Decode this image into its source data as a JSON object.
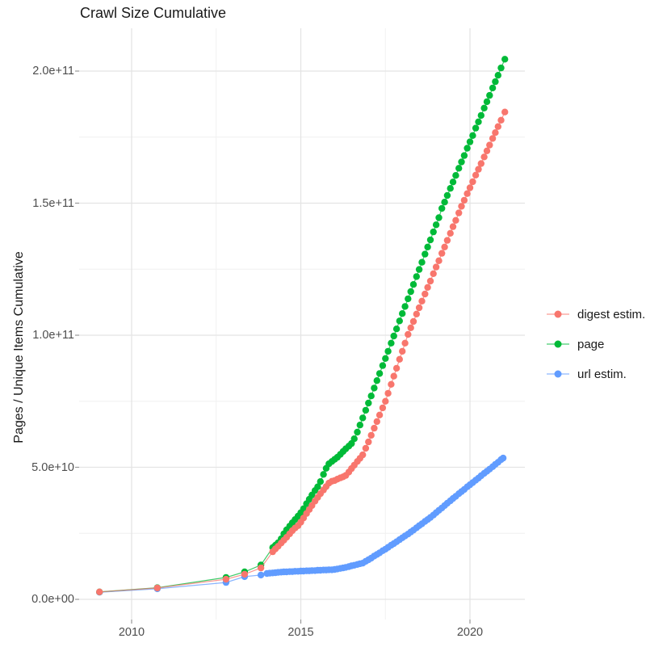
{
  "title": "Crawl Size Cumulative",
  "y_axis": {
    "label": "Pages / Unique Items Cumulative",
    "tick_labels": [
      "0.0e+00",
      "5.0e+10",
      "1.0e+11",
      "1.5e+11",
      "2.0e+11"
    ],
    "tick_values_e9": [
      0,
      50,
      100,
      150,
      200
    ],
    "minor_values_e9": [
      25,
      75,
      125,
      175
    ]
  },
  "x_axis": {
    "tick_labels": [
      "2010",
      "2015",
      "2020"
    ],
    "tick_values": [
      2010,
      2015,
      2020
    ],
    "minor_values": [
      2012.5,
      2017.5
    ]
  },
  "legend": {
    "position": "right",
    "items": [
      "digest estim.",
      "page",
      "url estim."
    ]
  },
  "chart_data": {
    "type": "scatter",
    "title": "Crawl Size Cumulative",
    "xlabel": "",
    "ylabel": "Pages / Unique Items Cumulative",
    "value_unit": "items, stored as billions (1e9)",
    "x_range": [
      2009.05,
      2021.03
    ],
    "y_range_e9": [
      0,
      205
    ],
    "grid": true,
    "legend_position": "right",
    "draw_order": [
      "url estim.",
      "page",
      "digest estim."
    ],
    "series": [
      {
        "name": "digest estim.",
        "color": "#F8766D",
        "points": [
          [
            2009.05,
            2.8
          ],
          [
            2010.76,
            4.3
          ],
          [
            2012.79,
            7.6
          ],
          [
            2013.34,
            9.5
          ],
          [
            2013.82,
            11.9
          ],
          [
            2014.17,
            18.0
          ],
          [
            2014.25,
            19.1
          ],
          [
            2014.33,
            20.1
          ],
          [
            2014.42,
            21.3
          ],
          [
            2014.5,
            22.4
          ],
          [
            2014.58,
            23.5
          ],
          [
            2014.67,
            24.8
          ],
          [
            2014.75,
            26.0
          ],
          [
            2014.83,
            27.0
          ],
          [
            2014.92,
            27.9
          ],
          [
            2015.0,
            29.2
          ],
          [
            2015.08,
            30.8
          ],
          [
            2015.17,
            32.5
          ],
          [
            2015.25,
            34.0
          ],
          [
            2015.33,
            35.5
          ],
          [
            2015.42,
            37.2
          ],
          [
            2015.5,
            38.6
          ],
          [
            2015.58,
            40.0
          ],
          [
            2015.67,
            41.4
          ],
          [
            2015.75,
            42.7
          ],
          [
            2015.83,
            44.0
          ],
          [
            2015.92,
            44.7
          ],
          [
            2016.0,
            45.0
          ],
          [
            2016.08,
            45.5
          ],
          [
            2016.17,
            46.0
          ],
          [
            2016.25,
            46.4
          ],
          [
            2016.33,
            46.9
          ],
          [
            2016.42,
            48.2
          ],
          [
            2016.5,
            49.5
          ],
          [
            2016.58,
            50.8
          ],
          [
            2016.67,
            52.2
          ],
          [
            2016.75,
            53.4
          ],
          [
            2016.83,
            54.7
          ],
          [
            2016.92,
            57.2
          ],
          [
            2017.0,
            59.6
          ],
          [
            2017.08,
            62.1
          ],
          [
            2017.17,
            64.8
          ],
          [
            2017.25,
            67.3
          ],
          [
            2017.33,
            69.8
          ],
          [
            2017.42,
            72.5
          ],
          [
            2017.5,
            75.0
          ],
          [
            2017.58,
            78.0
          ],
          [
            2017.67,
            81.4
          ],
          [
            2017.75,
            84.5
          ],
          [
            2017.83,
            87.5
          ],
          [
            2017.92,
            90.9
          ],
          [
            2018.0,
            93.9
          ],
          [
            2018.08,
            97.0
          ],
          [
            2018.17,
            100.3
          ],
          [
            2018.25,
            102.8
          ],
          [
            2018.33,
            105.2
          ],
          [
            2018.42,
            108.0
          ],
          [
            2018.5,
            110.4
          ],
          [
            2018.58,
            112.9
          ],
          [
            2018.67,
            115.6
          ],
          [
            2018.75,
            118.1
          ],
          [
            2018.83,
            120.5
          ],
          [
            2018.92,
            123.3
          ],
          [
            2019.0,
            125.8
          ],
          [
            2019.08,
            128.2
          ],
          [
            2019.17,
            131.0
          ],
          [
            2019.25,
            133.4
          ],
          [
            2019.33,
            135.9
          ],
          [
            2019.42,
            138.6
          ],
          [
            2019.5,
            141.1
          ],
          [
            2019.58,
            143.5
          ],
          [
            2019.67,
            146.3
          ],
          [
            2019.75,
            148.8
          ],
          [
            2019.83,
            151.1
          ],
          [
            2019.92,
            153.6
          ],
          [
            2020.0,
            155.8
          ],
          [
            2020.08,
            158.1
          ],
          [
            2020.17,
            160.6
          ],
          [
            2020.25,
            162.8
          ],
          [
            2020.33,
            165.0
          ],
          [
            2020.42,
            167.5
          ],
          [
            2020.5,
            169.8
          ],
          [
            2020.58,
            172.0
          ],
          [
            2020.67,
            174.5
          ],
          [
            2020.75,
            176.7
          ],
          [
            2020.83,
            179.0
          ],
          [
            2020.92,
            181.4
          ],
          [
            2021.03,
            184.5
          ]
        ]
      },
      {
        "name": "page",
        "color": "#00BA38",
        "points": [
          [
            2009.05,
            2.8
          ],
          [
            2010.76,
            4.4
          ],
          [
            2012.79,
            8.3
          ],
          [
            2013.34,
            10.4
          ],
          [
            2013.82,
            13.0
          ],
          [
            2014.17,
            19.6
          ],
          [
            2014.25,
            20.5
          ],
          [
            2014.33,
            21.4
          ],
          [
            2014.42,
            22.9
          ],
          [
            2014.5,
            24.8
          ],
          [
            2014.58,
            26.3
          ],
          [
            2014.67,
            27.7
          ],
          [
            2014.75,
            29.0
          ],
          [
            2014.83,
            30.2
          ],
          [
            2014.92,
            31.5
          ],
          [
            2015.0,
            32.8
          ],
          [
            2015.08,
            34.3
          ],
          [
            2015.17,
            36.2
          ],
          [
            2015.25,
            37.9
          ],
          [
            2015.33,
            39.5
          ],
          [
            2015.42,
            41.2
          ],
          [
            2015.5,
            42.6
          ],
          [
            2015.58,
            44.6
          ],
          [
            2015.67,
            47.3
          ],
          [
            2015.75,
            49.6
          ],
          [
            2015.83,
            51.3
          ],
          [
            2015.92,
            52.2
          ],
          [
            2016.0,
            53.0
          ],
          [
            2016.08,
            53.8
          ],
          [
            2016.17,
            54.9
          ],
          [
            2016.25,
            56.0
          ],
          [
            2016.33,
            57.0
          ],
          [
            2016.42,
            58.0
          ],
          [
            2016.5,
            59.0
          ],
          [
            2016.58,
            60.8
          ],
          [
            2016.67,
            63.3
          ],
          [
            2016.75,
            66.0
          ],
          [
            2016.83,
            68.7
          ],
          [
            2016.92,
            71.6
          ],
          [
            2017.0,
            74.3
          ],
          [
            2017.08,
            77.0
          ],
          [
            2017.17,
            80.0
          ],
          [
            2017.25,
            82.8
          ],
          [
            2017.33,
            85.5
          ],
          [
            2017.42,
            88.5
          ],
          [
            2017.5,
            91.2
          ],
          [
            2017.58,
            93.9
          ],
          [
            2017.67,
            97.0
          ],
          [
            2017.75,
            99.7
          ],
          [
            2017.83,
            102.4
          ],
          [
            2017.92,
            105.4
          ],
          [
            2018.0,
            108.2
          ],
          [
            2018.08,
            110.9
          ],
          [
            2018.17,
            113.8
          ],
          [
            2018.25,
            116.5
          ],
          [
            2018.33,
            119.2
          ],
          [
            2018.42,
            122.2
          ],
          [
            2018.5,
            124.9
          ],
          [
            2018.58,
            127.6
          ],
          [
            2018.67,
            130.7
          ],
          [
            2018.75,
            133.4
          ],
          [
            2018.83,
            136.1
          ],
          [
            2018.92,
            139.1
          ],
          [
            2019.0,
            141.8
          ],
          [
            2019.08,
            144.5
          ],
          [
            2019.17,
            148.0
          ],
          [
            2019.25,
            150.4
          ],
          [
            2019.33,
            152.9
          ],
          [
            2019.42,
            155.6
          ],
          [
            2019.5,
            158.0
          ],
          [
            2019.58,
            160.5
          ],
          [
            2019.67,
            163.2
          ],
          [
            2019.75,
            165.6
          ],
          [
            2019.83,
            168.0
          ],
          [
            2019.92,
            170.8
          ],
          [
            2020.0,
            173.2
          ],
          [
            2020.08,
            175.6
          ],
          [
            2020.17,
            178.4
          ],
          [
            2020.25,
            180.8
          ],
          [
            2020.33,
            183.2
          ],
          [
            2020.42,
            186.0
          ],
          [
            2020.5,
            188.4
          ],
          [
            2020.58,
            190.8
          ],
          [
            2020.67,
            193.6
          ],
          [
            2020.75,
            196.0
          ],
          [
            2020.83,
            198.4
          ],
          [
            2020.92,
            201.2
          ],
          [
            2021.03,
            204.5
          ]
        ]
      },
      {
        "name": "url estim.",
        "color": "#619CFF",
        "points": [
          [
            2009.05,
            2.7
          ],
          [
            2010.76,
            4.0
          ],
          [
            2012.79,
            6.4
          ],
          [
            2013.34,
            8.6
          ],
          [
            2013.82,
            9.2
          ],
          [
            2014.0,
            9.8
          ],
          [
            2014.08,
            9.9
          ],
          [
            2014.17,
            10.0
          ],
          [
            2014.25,
            10.1
          ],
          [
            2014.33,
            10.2
          ],
          [
            2014.42,
            10.3
          ],
          [
            2014.5,
            10.4
          ],
          [
            2014.58,
            10.4
          ],
          [
            2014.67,
            10.5
          ],
          [
            2014.75,
            10.5
          ],
          [
            2014.83,
            10.6
          ],
          [
            2014.92,
            10.6
          ],
          [
            2015.0,
            10.7
          ],
          [
            2015.08,
            10.7
          ],
          [
            2015.17,
            10.8
          ],
          [
            2015.25,
            10.8
          ],
          [
            2015.33,
            10.9
          ],
          [
            2015.42,
            10.9
          ],
          [
            2015.5,
            11.0
          ],
          [
            2015.58,
            11.0
          ],
          [
            2015.67,
            11.1
          ],
          [
            2015.75,
            11.1
          ],
          [
            2015.83,
            11.2
          ],
          [
            2015.92,
            11.2
          ],
          [
            2016.0,
            11.3
          ],
          [
            2016.08,
            11.5
          ],
          [
            2016.17,
            11.7
          ],
          [
            2016.25,
            11.9
          ],
          [
            2016.33,
            12.1
          ],
          [
            2016.42,
            12.4
          ],
          [
            2016.5,
            12.7
          ],
          [
            2016.58,
            12.9
          ],
          [
            2016.67,
            13.2
          ],
          [
            2016.75,
            13.5
          ],
          [
            2016.83,
            13.7
          ],
          [
            2016.92,
            14.4
          ],
          [
            2017.0,
            15.0
          ],
          [
            2017.08,
            15.6
          ],
          [
            2017.17,
            16.4
          ],
          [
            2017.25,
            17.0
          ],
          [
            2017.33,
            17.6
          ],
          [
            2017.42,
            18.4
          ],
          [
            2017.5,
            19.0
          ],
          [
            2017.58,
            19.7
          ],
          [
            2017.67,
            20.5
          ],
          [
            2017.75,
            21.1
          ],
          [
            2017.83,
            21.8
          ],
          [
            2017.92,
            22.6
          ],
          [
            2018.0,
            23.3
          ],
          [
            2018.08,
            24.0
          ],
          [
            2018.17,
            24.7
          ],
          [
            2018.25,
            25.5
          ],
          [
            2018.33,
            26.2
          ],
          [
            2018.42,
            27.1
          ],
          [
            2018.5,
            27.9
          ],
          [
            2018.58,
            28.6
          ],
          [
            2018.67,
            29.5
          ],
          [
            2018.75,
            30.2
          ],
          [
            2018.83,
            31.0
          ],
          [
            2018.92,
            31.9
          ],
          [
            2019.0,
            32.8
          ],
          [
            2019.08,
            33.7
          ],
          [
            2019.17,
            34.6
          ],
          [
            2019.25,
            35.5
          ],
          [
            2019.33,
            36.4
          ],
          [
            2019.42,
            37.3
          ],
          [
            2019.5,
            38.2
          ],
          [
            2019.58,
            39.0
          ],
          [
            2019.67,
            40.0
          ],
          [
            2019.75,
            40.8
          ],
          [
            2019.83,
            41.6
          ],
          [
            2019.92,
            42.6
          ],
          [
            2020.0,
            43.4
          ],
          [
            2020.08,
            44.2
          ],
          [
            2020.17,
            45.1
          ],
          [
            2020.25,
            45.9
          ],
          [
            2020.33,
            46.8
          ],
          [
            2020.42,
            47.7
          ],
          [
            2020.5,
            48.5
          ],
          [
            2020.58,
            49.3
          ],
          [
            2020.67,
            50.2
          ],
          [
            2020.75,
            51.1
          ],
          [
            2020.83,
            51.9
          ],
          [
            2020.92,
            52.9
          ],
          [
            2020.98,
            53.5
          ]
        ]
      }
    ]
  },
  "style": {
    "grid_major_color": "#E4E4E4",
    "grid_minor_color": "#F0F0F0",
    "tick_mark_color": "#999999",
    "axis_text_color": "#4d4d4d",
    "text_color": "#1a1a1a",
    "background": "#ffffff"
  }
}
